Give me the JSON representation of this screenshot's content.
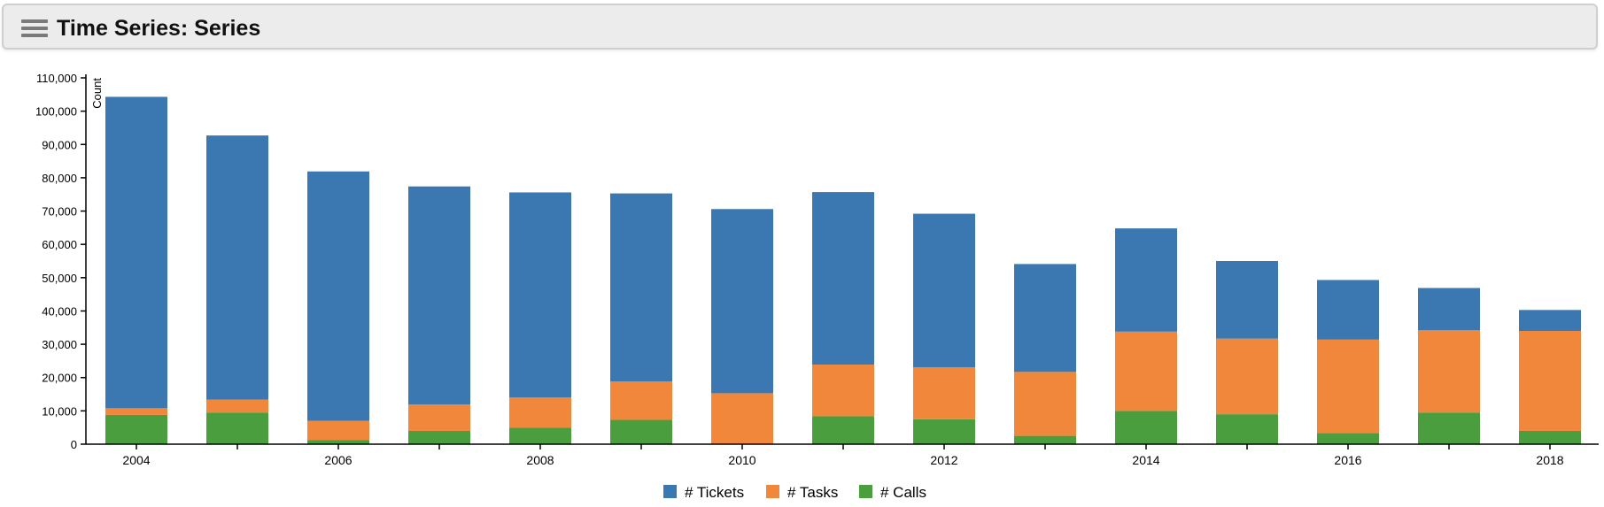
{
  "header": {
    "title": "Time Series: Series",
    "menu_icon": "hamburger-menu-icon"
  },
  "chart_data": {
    "type": "bar",
    "stacked": true,
    "title": "Time Series: Series",
    "ylabel": "Count",
    "xlabel": "",
    "ylim": [
      0,
      110000
    ],
    "yticks": [
      0,
      10000,
      20000,
      30000,
      40000,
      50000,
      60000,
      70000,
      80000,
      90000,
      100000,
      110000
    ],
    "ytick_labels": [
      "0",
      "10,000",
      "20,000",
      "30,000",
      "40,000",
      "50,000",
      "60,000",
      "70,000",
      "80,000",
      "90,000",
      "100,000",
      "110,000"
    ],
    "categories": [
      "2004",
      "2005",
      "2006",
      "2007",
      "2008",
      "2009",
      "2010",
      "2011",
      "2012",
      "2013",
      "2014",
      "2015",
      "2016",
      "2017",
      "2018"
    ],
    "xtick_labels": [
      "2004",
      "2006",
      "2008",
      "2010",
      "2012",
      "2014",
      "2016",
      "2018"
    ],
    "series": [
      {
        "name": "# Calls",
        "color": "#4b9e3d",
        "values": [
          8800,
          9500,
          1200,
          4000,
          5000,
          7300,
          0,
          8400,
          7500,
          2500,
          10000,
          9000,
          3300,
          9500,
          4000
        ]
      },
      {
        "name": "# Tasks",
        "color": "#f0873a",
        "values": [
          2000,
          3900,
          5800,
          7900,
          9000,
          11500,
          15300,
          15500,
          15600,
          19200,
          23800,
          22700,
          28100,
          24700,
          30000
        ]
      },
      {
        "name": "# Tickets",
        "color": "#3b77b0",
        "values": [
          93500,
          79300,
          74900,
          65500,
          61600,
          56500,
          55300,
          51800,
          46100,
          32400,
          31000,
          23300,
          17900,
          12700,
          6300
        ]
      }
    ],
    "legend": {
      "position": "bottom-center",
      "items": [
        {
          "label": "# Tickets",
          "color": "#3b77b0"
        },
        {
          "label": "# Tasks",
          "color": "#f0873a"
        },
        {
          "label": "# Calls",
          "color": "#4b9e3d"
        }
      ]
    },
    "grid": false
  }
}
